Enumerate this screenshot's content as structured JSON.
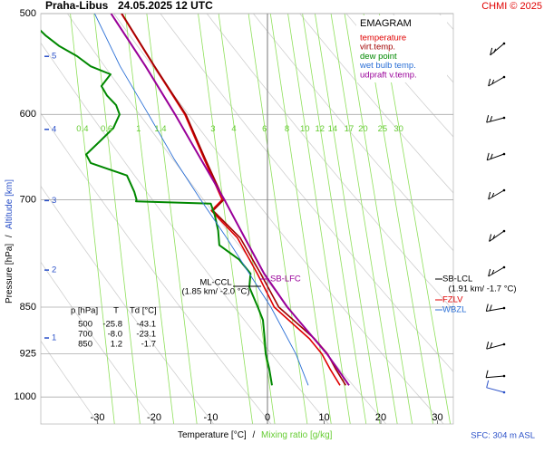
{
  "chart_data": {
    "type": "emagram",
    "title": "Praha-Libus",
    "subtitle": "24.05.2025 12 UTC",
    "credit": "CHMI © 2025",
    "footnote": "SFC: 304 m ASL",
    "x_label": "Temperature [°C]",
    "x_label_separator": "/",
    "x_label_2": "Mixing ratio [g/kg]",
    "y_label": "Pressure [hPa]",
    "y_label_separator": "/",
    "y_label_2": "Altitude [km]",
    "legend_title": "EMAGRAM",
    "xlim": [
      -40,
      32.8
    ],
    "ylim": [
      1050,
      500
    ],
    "log_y": true,
    "xticks": [
      -30,
      -20,
      -10,
      0,
      10,
      20,
      30
    ],
    "yticks": [
      500,
      600,
      700,
      850,
      925,
      1000
    ],
    "altitude_ticks": [
      1,
      2,
      3,
      4,
      5
    ],
    "mixing_ratio_ticks": [
      0.4,
      0.6,
      1,
      1.4,
      3,
      4,
      6,
      8,
      10,
      12,
      14,
      17,
      20,
      25,
      30
    ],
    "series": [
      {
        "name": "temperature",
        "color": "#e00000",
        "pressure": [
          979,
          950,
          925,
          900,
          850,
          800,
          750,
          714,
          700,
          650,
          600,
          550,
          500
        ],
        "values": [
          12.8,
          11,
          9.6,
          7.4,
          1.2,
          -1.8,
          -5.3,
          -9.9,
          -8.0,
          -11.2,
          -14.6,
          -20.0,
          -25.8
        ]
      },
      {
        "name": "virt.temp.",
        "color": "#a00000",
        "pressure": [
          979,
          950,
          925,
          900,
          850,
          800,
          750,
          714,
          700,
          650,
          600,
          550,
          500
        ],
        "values": [
          13.8,
          12,
          10.6,
          8.3,
          2.0,
          -1.2,
          -4.8,
          -9.6,
          -7.7,
          -11.0,
          -14.4,
          -19.9,
          -25.7
        ]
      },
      {
        "name": "dew point",
        "color": "#008800",
        "pressure": [
          979,
          950,
          925,
          900,
          870,
          850,
          820,
          800,
          780,
          760,
          740,
          720,
          705,
          702,
          700,
          690,
          670,
          655,
          645,
          630,
          615,
          600,
          590,
          580,
          570,
          558,
          550,
          540,
          530,
          520,
          500
        ],
        "values": [
          0.8,
          0.3,
          -0.3,
          -0.5,
          -0.8,
          -1.7,
          -3.2,
          -3.0,
          -5.0,
          -8.5,
          -8.7,
          -9.3,
          -10.0,
          -23.2,
          -23.1,
          -23.5,
          -24.8,
          -31.2,
          -32.0,
          -29.6,
          -27.2,
          -26.1,
          -26.7,
          -28.3,
          -29.3,
          -27.7,
          -31.2,
          -33.6,
          -36.8,
          -39.2,
          -43.1
        ]
      },
      {
        "name": "wet bulb temp.",
        "color": "#2a6fd6",
        "pressure": [
          979,
          925,
          850,
          800,
          750,
          700,
          650,
          600,
          550,
          500
        ],
        "values": [
          7.2,
          5.0,
          0.6,
          -3.2,
          -7.2,
          -11.8,
          -16.5,
          -21.0,
          -26.0,
          -30.5
        ]
      },
      {
        "name": "udpraft v.temp.",
        "color": "#990099",
        "pressure": [
          979,
          925,
          850,
          800,
          750,
          700,
          650,
          600,
          550,
          500
        ],
        "values": [
          14.4,
          10.5,
          3.5,
          -0.6,
          -4.0,
          -7.6,
          -11.8,
          -16.3,
          -21.5,
          -27.6
        ]
      }
    ],
    "annotations": {
      "ml_ccl": "ML-CCL",
      "ml_ccl_detail": "(1.85 km/ -2.0 °C)",
      "sb_lfc": "SB-LFC",
      "sb_lcl": "SB-LCL",
      "sb_lcl_detail": "(1.91 km/ -1.7 °C)",
      "fzlv": "FZLV",
      "wbzl": "WBZL"
    },
    "table": {
      "header": [
        "p [hPa]",
        "T",
        "Td [°C]"
      ],
      "rows": [
        [
          "500",
          "-25.8",
          "-43.1"
        ],
        [
          "700",
          "-8.0",
          "-23.1"
        ],
        [
          "850",
          "1.2",
          "-1.7"
        ]
      ]
    }
  }
}
